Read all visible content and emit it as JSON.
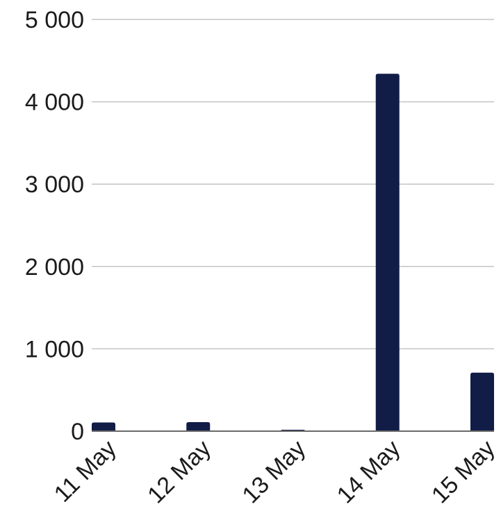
{
  "chart_data": {
    "type": "bar",
    "categories": [
      "11 May",
      "12 May",
      "13 May",
      "14 May",
      "15 May"
    ],
    "series": [
      {
        "values": [
          105,
          110,
          15,
          4340,
          710
        ]
      }
    ],
    "ylim": [
      0,
      5000
    ],
    "yticks": [
      0,
      1000,
      2000,
      3000,
      4000,
      5000
    ],
    "ytick_labels": [
      "0",
      "1 000",
      "2 000",
      "3 000",
      "4 000",
      "5 000"
    ],
    "title": "",
    "xlabel": "",
    "ylabel": "",
    "grid": true,
    "legend": "none",
    "colors": {
      "bar": "#111c47",
      "grid": "#c4c4c4",
      "axis": "#6a6a6a",
      "text": "#1b1b1b"
    }
  }
}
